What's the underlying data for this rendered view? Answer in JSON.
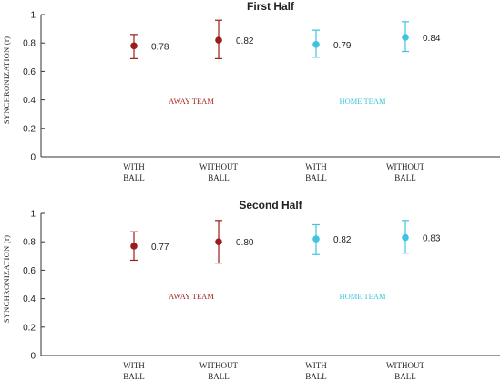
{
  "chart_data": [
    {
      "type": "scatter",
      "title": "First Half",
      "ylabel": "SYNCHRONIZATION (r̄)",
      "ylim": [
        0,
        1
      ],
      "yticks": [
        "0",
        "0.2",
        "0.4",
        "0.6",
        "0.8",
        "1"
      ],
      "categories": [
        [
          "WITH",
          "BALL"
        ],
        [
          "WITHOUT",
          "BALL"
        ],
        [
          "WITH",
          "BALL"
        ],
        [
          "WITHOUT",
          "BALL"
        ]
      ],
      "groups": [
        {
          "label": "AWAY TEAM",
          "color": "#9b1c1c"
        },
        {
          "label": "HOME TEAM",
          "color": "#3ec4e0"
        }
      ],
      "points": [
        {
          "category": 0,
          "group": 0,
          "value": 0.78,
          "low": 0.69,
          "high": 0.86,
          "label": "0.78"
        },
        {
          "category": 1,
          "group": 0,
          "value": 0.82,
          "low": 0.69,
          "high": 0.96,
          "label": "0.82"
        },
        {
          "category": 2,
          "group": 1,
          "value": 0.79,
          "low": 0.7,
          "high": 0.89,
          "label": "0.79"
        },
        {
          "category": 3,
          "group": 1,
          "value": 0.84,
          "low": 0.74,
          "high": 0.95,
          "label": "0.84"
        }
      ]
    },
    {
      "type": "scatter",
      "title": "Second Half",
      "ylabel": "SYNCHRONIZATION (r̄)",
      "ylim": [
        0,
        1
      ],
      "yticks": [
        "0",
        "0.2",
        "0.4",
        "0.6",
        "0.8",
        "1"
      ],
      "categories": [
        [
          "WITH",
          "BALL"
        ],
        [
          "WITHOUT",
          "BALL"
        ],
        [
          "WITH",
          "BALL"
        ],
        [
          "WITHOUT",
          "BALL"
        ]
      ],
      "groups": [
        {
          "label": "AWAY TEAM",
          "color": "#9b1c1c"
        },
        {
          "label": "HOME TEAM",
          "color": "#3ec4e0"
        }
      ],
      "points": [
        {
          "category": 0,
          "group": 0,
          "value": 0.77,
          "low": 0.67,
          "high": 0.87,
          "label": "0.77"
        },
        {
          "category": 1,
          "group": 0,
          "value": 0.8,
          "low": 0.65,
          "high": 0.95,
          "label": "0.80"
        },
        {
          "category": 2,
          "group": 1,
          "value": 0.82,
          "low": 0.71,
          "high": 0.92,
          "label": "0.82"
        },
        {
          "category": 3,
          "group": 1,
          "value": 0.83,
          "low": 0.72,
          "high": 0.95,
          "label": "0.83"
        }
      ]
    }
  ]
}
